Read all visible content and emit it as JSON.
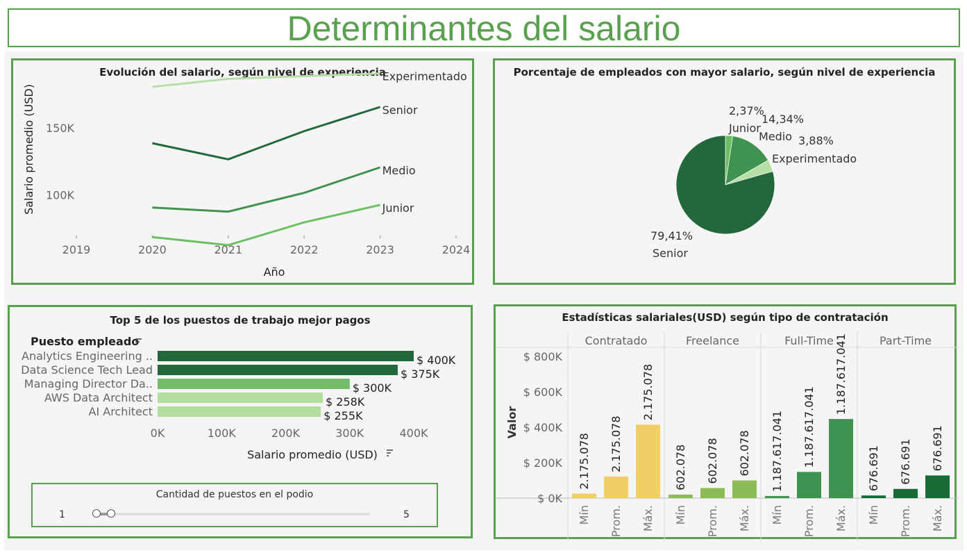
{
  "page_title": "Determinantes del salario",
  "chart_data": [
    {
      "type": "line",
      "title": "Evolución del salario, según nivel de experiencia",
      "xlabel": "Año",
      "ylabel": "Salario promedio (USD)",
      "x_ticks": [
        "2019",
        "2020",
        "2021",
        "2022",
        "2023",
        "2024"
      ],
      "y_ticks": [
        {
          "value": 100000,
          "label": "100K"
        },
        {
          "value": 150000,
          "label": "150K"
        }
      ],
      "x": [
        2020,
        2021,
        2022,
        2023
      ],
      "ylim": [
        65000,
        195000
      ],
      "series": [
        {
          "name": "Experimentado",
          "values": [
            181000,
            187000,
            189000,
            191000
          ],
          "color": "#b6dfa5"
        },
        {
          "name": "Senior",
          "values": [
            139000,
            127000,
            148000,
            166000
          ],
          "color": "#23683a"
        },
        {
          "name": "Medio",
          "values": [
            91000,
            88000,
            102000,
            121000
          ],
          "color": "#3f9250"
        },
        {
          "name": "Junior",
          "values": [
            69000,
            63000,
            80000,
            93000
          ],
          "color": "#6cc064"
        }
      ]
    },
    {
      "type": "pie",
      "title": "Porcentaje de empleados con mayor salario, según nivel de experiencia",
      "slices": [
        {
          "name": "Junior",
          "value": 2.37,
          "label": "2,37%",
          "color": "#6cc064"
        },
        {
          "name": "Medio",
          "value": 14.34,
          "label": "14,34%",
          "color": "#3f9250"
        },
        {
          "name": "Experimentado",
          "value": 3.88,
          "label": "3,88%",
          "color": "#b6dfa5"
        },
        {
          "name": "Senior",
          "value": 79.41,
          "label": "79,41%",
          "color": "#23683a"
        }
      ]
    },
    {
      "type": "bar",
      "orientation": "horizontal",
      "title": "Top 5 de los puestos de trabajo mejor pagos",
      "category_header": "Puesto empleado",
      "xlabel": "Salario promedio (USD)",
      "xlim": [
        0,
        400000
      ],
      "x_ticks": [
        {
          "value": 0,
          "label": "0K"
        },
        {
          "value": 100000,
          "label": "100K"
        },
        {
          "value": 200000,
          "label": "200K"
        },
        {
          "value": 300000,
          "label": "300K"
        },
        {
          "value": 400000,
          "label": "400K"
        }
      ],
      "categories": [
        "Analytics Engineering ..",
        "Data Science Tech Lead",
        "Managing Director Da..",
        "AWS Data Architect",
        "AI Architect"
      ],
      "values": [
        400000,
        375000,
        300000,
        258000,
        255000
      ],
      "value_labels": [
        "$ 400K",
        "$ 375K",
        "$ 300K",
        "$ 258K",
        "$ 255K"
      ],
      "colors": [
        "#23683a",
        "#23683a",
        "#72bc66",
        "#b2dfa0",
        "#b2dfa0"
      ],
      "filter": {
        "label": "Cantidad de puestos en el podio",
        "min_label": "1",
        "max_label": "5",
        "min": 1,
        "max": 5,
        "value": 1
      }
    },
    {
      "type": "bar",
      "title": "Estadísticas salariales(USD) según tipo de contratación",
      "ylabel": "Valor",
      "ylim": [
        0,
        950000
      ],
      "y_ticks": [
        {
          "value": 0,
          "label": "$ 0K"
        },
        {
          "value": 200000,
          "label": "$ 200K"
        },
        {
          "value": 400000,
          "label": "$ 400K"
        },
        {
          "value": 600000,
          "label": "$ 600K"
        },
        {
          "value": 800000,
          "label": "$ 800K"
        }
      ],
      "sub_categories": [
        "Mín",
        "Prom.",
        "Máx."
      ],
      "groups": [
        {
          "name": "Contratado",
          "values": [
            25000,
            122000,
            415000
          ],
          "value_labels": [
            "2.175.078",
            "2.175.078",
            "2.175.078"
          ],
          "color": "#f2cf64"
        },
        {
          "name": "Freelance",
          "values": [
            20000,
            57000,
            100000
          ],
          "value_labels": [
            "602.078",
            "602.078",
            "602.078"
          ],
          "color": "#8dbb55"
        },
        {
          "name": "Full-Time",
          "values": [
            12000,
            148000,
            447000
          ],
          "value_labels": [
            "1.187.617.041",
            "1.187.617.041",
            "1.187.617.041"
          ],
          "color": "#3f9250"
        },
        {
          "name": "Part-Time",
          "values": [
            15000,
            52000,
            128000
          ],
          "value_labels": [
            "676.691",
            "676.691",
            "676.691"
          ],
          "color": "#166c34"
        }
      ]
    }
  ]
}
